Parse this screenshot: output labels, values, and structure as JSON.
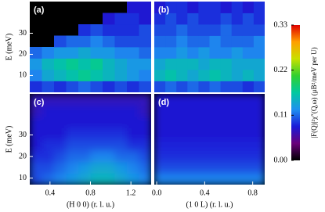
{
  "chart_data": [
    {
      "type": "heatmap",
      "label": "(a)",
      "ylabel": "E (meV)",
      "xlim": [
        0.2,
        1.4
      ],
      "ylim": [
        2,
        45
      ],
      "yticks": [
        10,
        20,
        30
      ],
      "z": [
        [
          0.09,
          0.1,
          0.09,
          0.1,
          0.11,
          0.1,
          0.09,
          0.1,
          0.09,
          0.1
        ],
        [
          0.12,
          0.14,
          0.15,
          0.16,
          0.17,
          0.16,
          0.15,
          0.14,
          0.13,
          0.12
        ],
        [
          0.13,
          0.15,
          0.16,
          0.17,
          0.16,
          0.17,
          0.15,
          0.14,
          0.13,
          0.13
        ],
        [
          0.11,
          0.12,
          0.13,
          0.13,
          0.14,
          0.13,
          0.13,
          0.12,
          0.12,
          0.11
        ],
        [
          null,
          null,
          0.1,
          0.11,
          0.11,
          0.12,
          0.11,
          0.1,
          0.1,
          0.1
        ],
        [
          null,
          null,
          null,
          null,
          0.09,
          0.1,
          0.09,
          0.09,
          0.09,
          0.1
        ],
        [
          null,
          null,
          null,
          null,
          null,
          null,
          0.08,
          0.09,
          0.09,
          0.08
        ],
        [
          null,
          null,
          null,
          null,
          null,
          null,
          null,
          null,
          0.08,
          0.08
        ]
      ]
    },
    {
      "type": "heatmap",
      "label": "(b)",
      "xlim": [
        -0.02,
        0.9
      ],
      "ylim": [
        2,
        45
      ],
      "z": [
        [
          0.1,
          0.11,
          0.1,
          0.11,
          0.1,
          0.11,
          0.1,
          0.1,
          0.09,
          0.1
        ],
        [
          0.15,
          0.16,
          0.15,
          0.14,
          0.15,
          0.16,
          0.15,
          0.14,
          0.15,
          0.14
        ],
        [
          0.14,
          0.15,
          0.15,
          0.15,
          0.14,
          0.15,
          0.15,
          0.14,
          0.14,
          0.14
        ],
        [
          0.12,
          0.12,
          0.13,
          0.12,
          0.13,
          0.12,
          0.12,
          0.13,
          0.12,
          0.12
        ],
        [
          0.11,
          0.11,
          0.12,
          0.11,
          0.11,
          0.12,
          0.11,
          0.11,
          0.11,
          0.12
        ],
        [
          0.1,
          0.1,
          0.11,
          0.1,
          0.1,
          0.1,
          0.11,
          0.1,
          0.1,
          0.1
        ],
        [
          0.09,
          0.1,
          0.09,
          0.1,
          0.09,
          0.09,
          0.1,
          0.09,
          0.1,
          0.09
        ],
        [
          0.08,
          0.09,
          0.09,
          0.08,
          0.09,
          0.09,
          0.08,
          0.09,
          0.08,
          0.09
        ]
      ]
    },
    {
      "type": "heatmap",
      "label": "(c)",
      "ylabel": "E (meV)",
      "xlabel": "(H 0 0)  (r. l. u.)",
      "xlim": [
        0.2,
        1.4
      ],
      "ylim": [
        7,
        49
      ],
      "xticks": [
        0.4,
        0.8,
        1.2
      ],
      "yticks": [
        10,
        20,
        30
      ],
      "smooth": true,
      "z": [
        [
          0.1,
          0.11,
          0.12,
          0.13,
          0.14,
          0.15,
          0.15,
          0.14,
          0.13,
          0.12
        ],
        [
          0.1,
          0.1,
          0.11,
          0.12,
          0.13,
          0.14,
          0.14,
          0.13,
          0.12,
          0.11
        ],
        [
          0.09,
          0.09,
          0.1,
          0.11,
          0.11,
          0.12,
          0.12,
          0.11,
          0.11,
          0.1
        ],
        [
          0.08,
          0.09,
          0.09,
          0.1,
          0.1,
          0.1,
          0.1,
          0.1,
          0.09,
          0.09
        ],
        [
          0.08,
          0.08,
          0.08,
          0.09,
          0.09,
          0.09,
          0.09,
          0.09,
          0.08,
          0.08
        ],
        [
          0.08,
          0.08,
          0.08,
          0.08,
          0.08,
          0.08,
          0.08,
          0.08,
          0.08,
          0.08
        ],
        [
          0.07,
          0.08,
          0.08,
          0.08,
          0.08,
          0.08,
          0.08,
          0.08,
          0.08,
          0.07
        ],
        [
          0.07,
          0.07,
          0.07,
          0.07,
          0.07,
          0.07,
          0.07,
          0.07,
          0.07,
          0.07
        ]
      ]
    },
    {
      "type": "heatmap",
      "label": "(d)",
      "xlabel": "(1 0 L)  (r. l. u.)",
      "xlim": [
        -0.02,
        0.9
      ],
      "ylim": [
        7,
        49
      ],
      "xticks": [
        {
          "value": 0,
          "label": "0.0"
        },
        0.4,
        0.8
      ],
      "smooth": true,
      "z": [
        [
          0.12,
          0.12,
          0.12,
          0.12,
          0.12,
          0.12,
          0.12,
          0.12,
          0.12,
          0.12
        ],
        [
          0.1,
          0.1,
          0.1,
          0.1,
          0.1,
          0.1,
          0.1,
          0.1,
          0.1,
          0.1
        ],
        [
          0.09,
          0.09,
          0.09,
          0.09,
          0.09,
          0.09,
          0.09,
          0.09,
          0.09,
          0.09
        ],
        [
          0.085,
          0.085,
          0.085,
          0.085,
          0.085,
          0.085,
          0.085,
          0.085,
          0.085,
          0.085
        ],
        [
          0.08,
          0.08,
          0.08,
          0.08,
          0.08,
          0.08,
          0.08,
          0.08,
          0.08,
          0.08
        ],
        [
          0.08,
          0.08,
          0.08,
          0.08,
          0.08,
          0.08,
          0.08,
          0.08,
          0.08,
          0.08
        ],
        [
          0.08,
          0.08,
          0.08,
          0.08,
          0.08,
          0.08,
          0.08,
          0.08,
          0.08,
          0.08
        ],
        [
          0.08,
          0.08,
          0.08,
          0.08,
          0.08,
          0.08,
          0.08,
          0.08,
          0.08,
          0.08
        ]
      ]
    },
    {
      "type": "colorbar",
      "label": "|F(Q)|²χ″(Q,ω) (μB²/meV per U)",
      "zlim": [
        0,
        0.33
      ],
      "ticks": [
        {
          "value": 0,
          "label": "0.00"
        },
        0.11,
        0.22,
        0.33
      ],
      "colors": [
        "#000000",
        "#6a007a",
        "#1a1ad8",
        "#1e90f0",
        "#00c8a0",
        "#30d030",
        "#c8e000",
        "#ffa000",
        "#e00000"
      ]
    }
  ]
}
